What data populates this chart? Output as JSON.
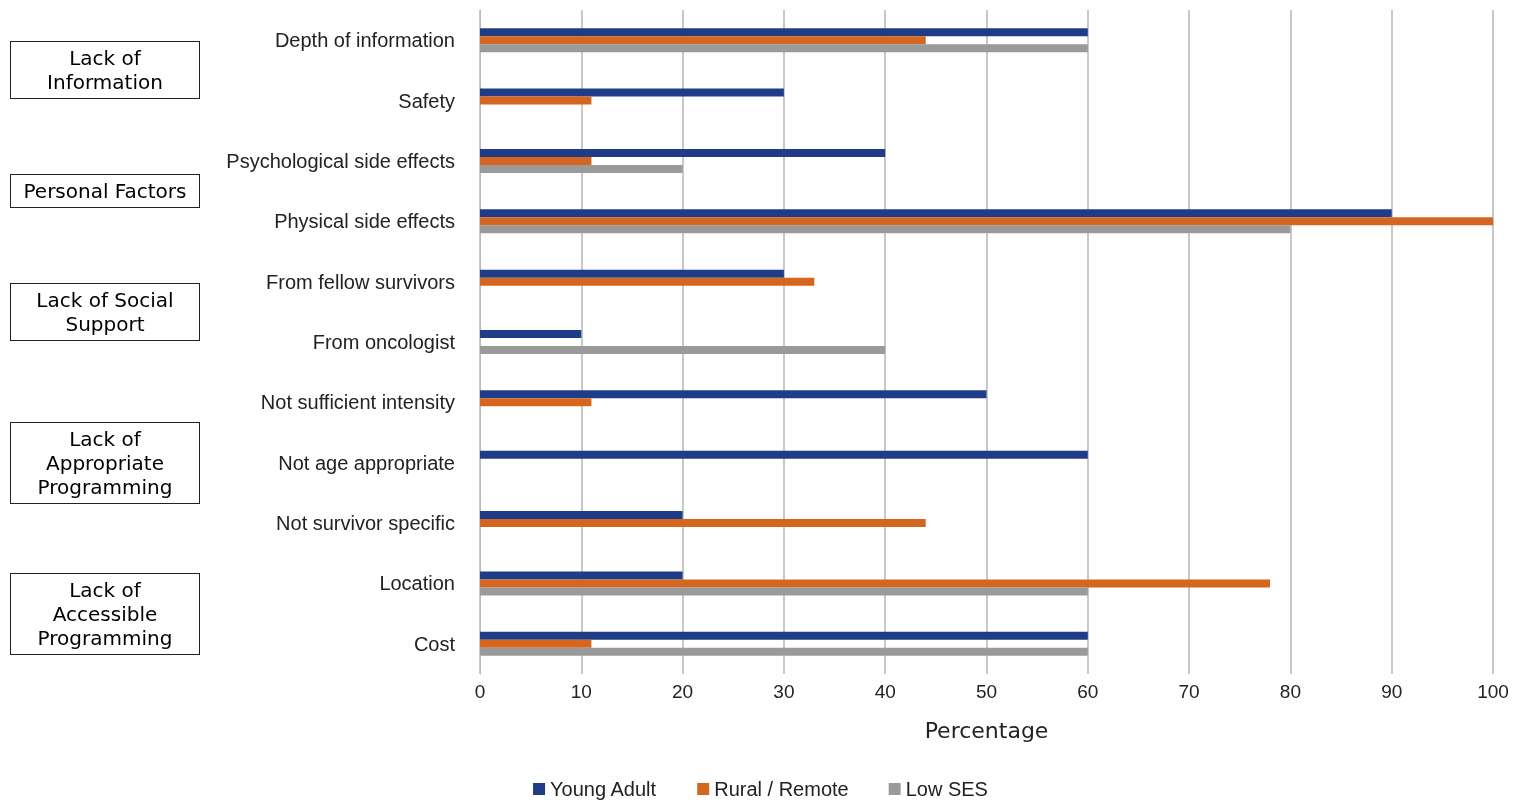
{
  "chart_data": {
    "type": "bar",
    "orientation": "horizontal",
    "xlabel": "Percentage",
    "categories": [
      "Depth of information",
      "Safety",
      "Psychological side effects",
      "Physical side effects",
      "From fellow survivors",
      "From oncologist",
      "Not sufficient intensity",
      "Not age appropriate",
      "Not survivor specific",
      "Location",
      "Cost"
    ],
    "series": [
      {
        "name": "Young Adult",
        "color": "#1f3c88",
        "values": [
          60,
          30,
          40,
          90,
          30,
          10,
          50,
          60,
          20,
          20,
          60
        ]
      },
      {
        "name": "Rural / Remote",
        "color": "#d4661f",
        "values": [
          44,
          11,
          11,
          100,
          33,
          null,
          11,
          null,
          44,
          78,
          11
        ]
      },
      {
        "name": "Low SES",
        "color": "#9a9a9a",
        "values": [
          60,
          null,
          20,
          80,
          null,
          40,
          null,
          null,
          null,
          60,
          60
        ]
      }
    ],
    "annotations": [
      "Lack of Information",
      "Personal Factors",
      "Lack of Social Support",
      "Lack of Appropriate Programming",
      "Lack of Accessible Programming"
    ],
    "xlim": [
      0,
      100
    ],
    "xticks": [
      0,
      10,
      20,
      30,
      40,
      50,
      60,
      70,
      80,
      90,
      100
    ],
    "grid": "x",
    "legend": "bottom"
  }
}
